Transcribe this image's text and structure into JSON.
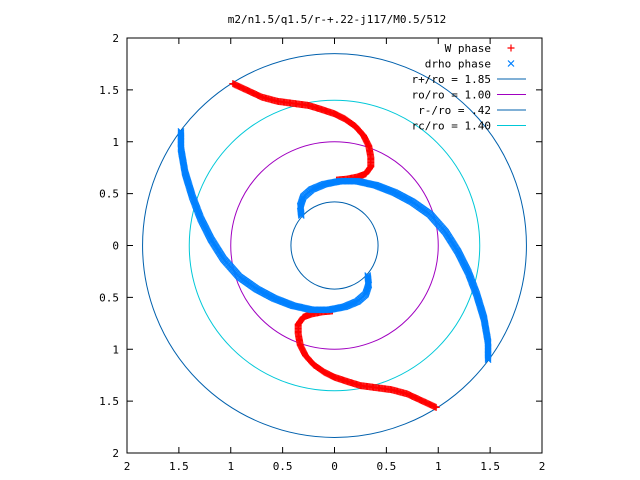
{
  "chart_data": {
    "type": "scatter",
    "title": "m2/n1.5/q1.5/r-+.22-j117/M0.5/512",
    "xlim": [
      -2,
      2
    ],
    "ylim": [
      -2,
      2
    ],
    "x_ticks": [
      -2,
      -1.5,
      -1,
      -0.5,
      0,
      0.5,
      1,
      1.5,
      2
    ],
    "y_ticks": [
      -2,
      -1.5,
      -1,
      -0.5,
      0,
      0.5,
      1,
      1.5,
      2
    ],
    "x_tick_labels": [
      "2",
      "1.5",
      "1",
      "0.5",
      "0",
      "0.5",
      "1",
      "1.5",
      "2"
    ],
    "y_tick_labels": [
      "2",
      "1.5",
      "1",
      "0.5",
      "0",
      "0.5",
      "1",
      "1.5",
      "2"
    ],
    "grid": false,
    "legend_position": "top-right",
    "series": [
      {
        "name": "W phase",
        "kind": "points",
        "marker": "plus",
        "color": "#ff0000",
        "arms": [
          [
            [
              -0.98,
              1.56
            ],
            [
              -0.85,
              1.5
            ],
            [
              -0.7,
              1.43
            ],
            [
              -0.55,
              1.39
            ],
            [
              -0.4,
              1.37
            ],
            [
              -0.25,
              1.35
            ],
            [
              -0.12,
              1.31
            ],
            [
              0.0,
              1.27
            ],
            [
              0.1,
              1.22
            ],
            [
              0.2,
              1.15
            ],
            [
              0.28,
              1.06
            ],
            [
              0.33,
              0.96
            ],
            [
              0.35,
              0.85
            ],
            [
              0.35,
              0.76
            ],
            [
              0.3,
              0.69
            ],
            [
              0.22,
              0.66
            ],
            [
              0.12,
              0.64
            ],
            [
              0.02,
              0.63
            ]
          ],
          [
            [
              0.98,
              -1.56
            ],
            [
              0.85,
              -1.5
            ],
            [
              0.7,
              -1.43
            ],
            [
              0.55,
              -1.39
            ],
            [
              0.4,
              -1.37
            ],
            [
              0.25,
              -1.35
            ],
            [
              0.12,
              -1.31
            ],
            [
              0.0,
              -1.27
            ],
            [
              -0.1,
              -1.22
            ],
            [
              -0.2,
              -1.15
            ],
            [
              -0.28,
              -1.06
            ],
            [
              -0.33,
              -0.96
            ],
            [
              -0.35,
              -0.85
            ],
            [
              -0.35,
              -0.76
            ],
            [
              -0.3,
              -0.69
            ],
            [
              -0.22,
              -0.66
            ],
            [
              -0.12,
              -0.64
            ],
            [
              -0.02,
              -0.63
            ]
          ]
        ]
      },
      {
        "name": "drho phase",
        "kind": "points",
        "marker": "cross",
        "color": "#0080ff",
        "arms": [
          [
            [
              -0.32,
              0.29
            ],
            [
              -0.33,
              0.38
            ],
            [
              -0.3,
              0.47
            ],
            [
              -0.22,
              0.54
            ],
            [
              -0.1,
              0.59
            ],
            [
              0.05,
              0.62
            ],
            [
              0.22,
              0.62
            ],
            [
              0.4,
              0.58
            ],
            [
              0.58,
              0.51
            ],
            [
              0.75,
              0.42
            ],
            [
              0.92,
              0.3
            ],
            [
              1.07,
              0.13
            ],
            [
              1.19,
              -0.06
            ],
            [
              1.29,
              -0.26
            ],
            [
              1.37,
              -0.47
            ],
            [
              1.44,
              -0.7
            ],
            [
              1.48,
              -0.93
            ],
            [
              1.48,
              -1.1
            ]
          ],
          [
            [
              0.32,
              -0.29
            ],
            [
              0.33,
              -0.38
            ],
            [
              0.3,
              -0.47
            ],
            [
              0.22,
              -0.54
            ],
            [
              0.1,
              -0.59
            ],
            [
              -0.05,
              -0.62
            ],
            [
              -0.22,
              -0.62
            ],
            [
              -0.4,
              -0.58
            ],
            [
              -0.58,
              -0.51
            ],
            [
              -0.75,
              -0.42
            ],
            [
              -0.92,
              -0.3
            ],
            [
              -1.07,
              -0.13
            ],
            [
              -1.19,
              0.06
            ],
            [
              -1.29,
              0.26
            ],
            [
              -1.37,
              0.47
            ],
            [
              -1.44,
              0.7
            ],
            [
              -1.48,
              0.93
            ],
            [
              -1.48,
              1.1
            ]
          ]
        ]
      },
      {
        "name": "r+/ro = 1.85",
        "kind": "circle",
        "radius": 1.85,
        "color": "#0060ad"
      },
      {
        "name": "ro/ro = 1.00",
        "kind": "circle",
        "radius": 1.0,
        "color": "#a000c0"
      },
      {
        "name": "r-/ro = .42",
        "kind": "circle",
        "radius": 0.42,
        "color": "#0060ad"
      },
      {
        "name": "rc/ro = 1.40",
        "kind": "circle",
        "radius": 1.4,
        "color": "#00c8d8"
      }
    ]
  }
}
